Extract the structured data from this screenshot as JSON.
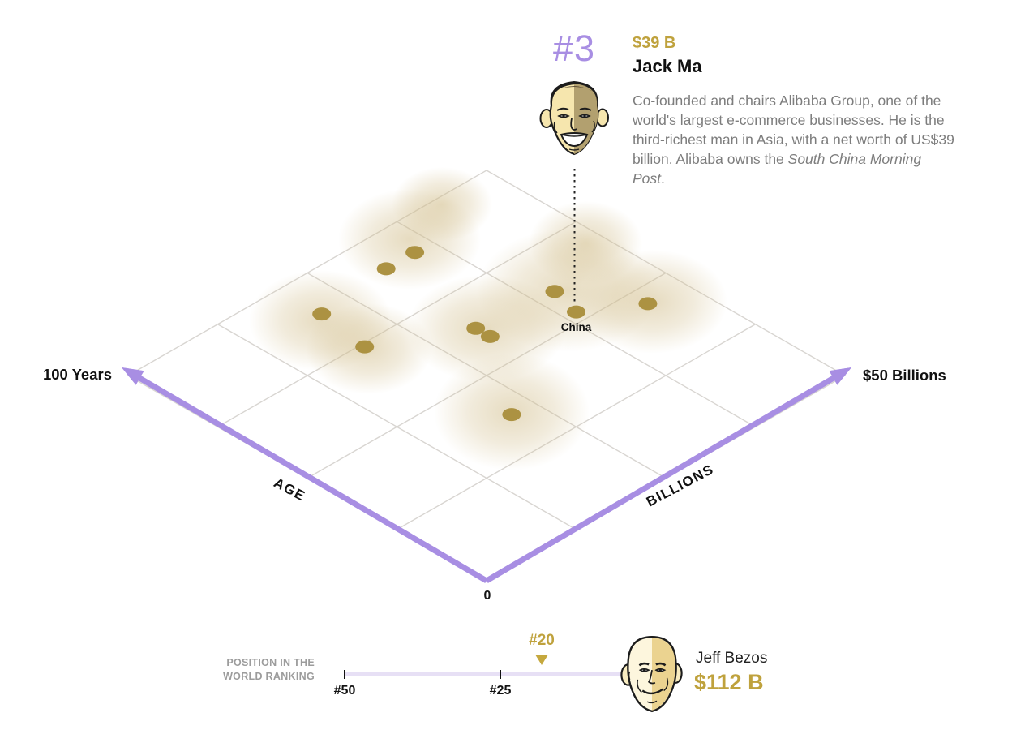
{
  "profile": {
    "rank": "#3",
    "net_worth": "$39 B",
    "name": "Jack Ma",
    "bio": "Co-founded and chairs Alibaba Group, one of the world's largest e-commerce businesses. He is the third-richest man in Asia, with a net worth of US$39 billion. Alibaba owns the ",
    "bio_italic": "South China Morning Post",
    "bio_suffix": "."
  },
  "chart_data": {
    "type": "scatter",
    "projection": "isometric plane",
    "axes": {
      "billions": {
        "label": "BILLIONS",
        "end_label": "$50 Billions",
        "min": 0,
        "max": 50,
        "cells": 4
      },
      "age": {
        "label": "AGE",
        "end_label": "100 Years",
        "min": 0,
        "max": 100,
        "cells": 4
      },
      "origin_label": "0"
    },
    "points": [
      {
        "age": 90,
        "billions": 35
      },
      {
        "age": 90,
        "billions": 31
      },
      {
        "age": 88,
        "billions": 21
      },
      {
        "age": 74,
        "billions": 20
      },
      {
        "age": 63,
        "billions": 30
      },
      {
        "age": 59,
        "billions": 30
      },
      {
        "age": 61,
        "billions": 40
      },
      {
        "age": 53,
        "billions": 39,
        "label": "China"
      },
      {
        "age": 45,
        "billions": 45
      },
      {
        "age": 37,
        "billions": 22
      }
    ]
  },
  "ranking": {
    "caption": [
      "POSITION IN THE",
      "WORLD RANKING"
    ],
    "scale_ticks": [
      "#50",
      "#25"
    ],
    "marker": "#20",
    "leader": {
      "name": "Jeff Bezos",
      "net_worth": "$112 B"
    }
  },
  "colors": {
    "purple": "#a88ee3",
    "gold_text": "#bfa23d",
    "dot": "#ac9242",
    "track": "#e7e0f5",
    "grid": "#d8d5d1",
    "bio_gray": "#7d7d7d",
    "caption_gray": "#9c9c9c"
  }
}
